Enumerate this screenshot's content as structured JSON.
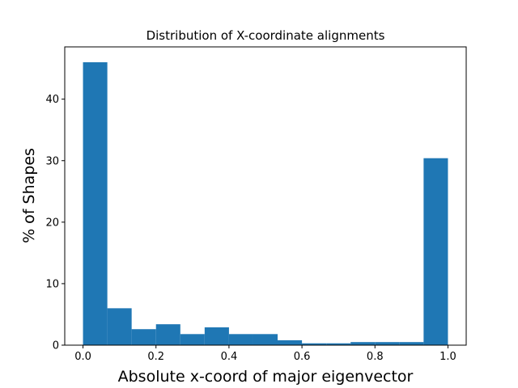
{
  "chart_data": {
    "type": "bar",
    "title": "Distribution of X-coordinate alignments",
    "xlabel": "Absolute x-coord of major eigenvector",
    "ylabel": "% of Shapes",
    "bin_edges": [
      0.0,
      0.0667,
      0.1333,
      0.2,
      0.2667,
      0.3333,
      0.4,
      0.4667,
      0.5333,
      0.6,
      0.6667,
      0.7333,
      0.8,
      0.8667,
      0.9333,
      1.0
    ],
    "values": [
      46.0,
      6.0,
      2.6,
      3.4,
      1.8,
      2.9,
      1.8,
      1.8,
      0.8,
      0.3,
      0.3,
      0.5,
      0.5,
      0.5,
      30.4
    ],
    "xlim": [
      -0.05,
      1.05
    ],
    "ylim": [
      0,
      48.5
    ],
    "xticks": [
      0.0,
      0.2,
      0.4,
      0.6,
      0.8,
      1.0
    ],
    "xtick_labels": [
      "0.0",
      "0.2",
      "0.4",
      "0.6",
      "0.8",
      "1.0"
    ],
    "yticks": [
      0,
      10,
      20,
      30,
      40
    ],
    "ytick_labels": [
      "0",
      "10",
      "20",
      "30",
      "40"
    ],
    "bar_color": "#1f77b4",
    "grid": false,
    "legend": "none"
  }
}
